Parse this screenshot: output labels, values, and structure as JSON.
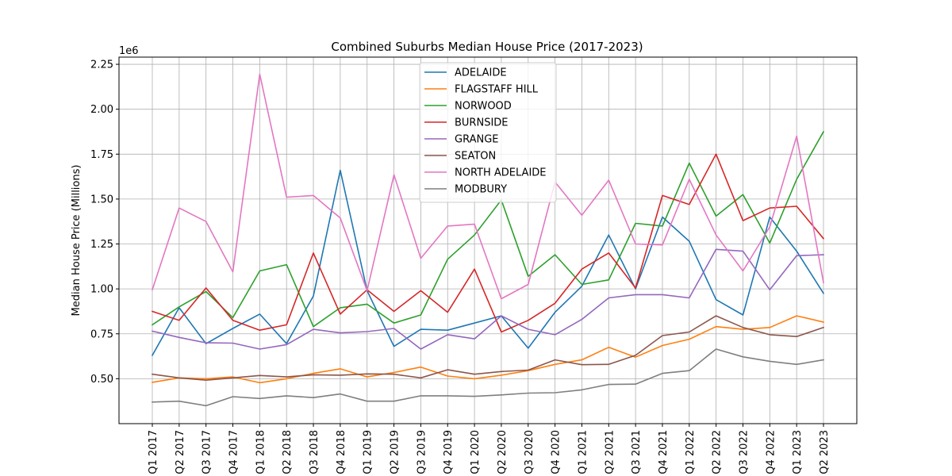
{
  "chart_data": {
    "type": "line",
    "title": "Combined Suburbs Median House Price (2017-2023)",
    "xlabel": "",
    "ylabel": "Median House Price (Millions)",
    "offset_label": "1e6",
    "ylim": [
      250000,
      2290000
    ],
    "yticks": [
      500000,
      750000,
      1000000,
      1250000,
      1500000,
      1750000,
      2000000,
      2250000
    ],
    "ytick_labels": [
      "0.50",
      "0.75",
      "1.00",
      "1.25",
      "1.50",
      "1.75",
      "2.00",
      "2.25"
    ],
    "grid": true,
    "legend_position": "upper-center",
    "categories": [
      "Q1 2017",
      "Q2 2017",
      "Q3 2017",
      "Q4 2017",
      "Q1 2018",
      "Q2 2018",
      "Q3 2018",
      "Q4 2018",
      "Q1 2019",
      "Q2 2019",
      "Q3 2019",
      "Q4 2019",
      "Q1 2020",
      "Q2 2020",
      "Q3 2020",
      "Q4 2020",
      "Q1 2021",
      "Q2 2021",
      "Q3 2021",
      "Q4 2021",
      "Q1 2022",
      "Q2 2022",
      "Q3 2022",
      "Q4 2022",
      "Q1 2023",
      "Q2 2023"
    ],
    "series": [
      {
        "name": "ADELAIDE",
        "color": "#1f77b4",
        "values": [
          630000,
          895000,
          695000,
          780000,
          860000,
          695000,
          960000,
          1660000,
          990000,
          680000,
          775000,
          770000,
          810000,
          850000,
          670000,
          870000,
          1015000,
          1300000,
          1000000,
          1400000,
          1265000,
          940000,
          855000,
          1400000,
          1210000,
          975000
        ]
      },
      {
        "name": "FLAGSTAFF HILL",
        "color": "#ff7f0e",
        "values": [
          480000,
          505000,
          500000,
          510000,
          478000,
          500000,
          530000,
          555000,
          510000,
          535000,
          565000,
          515000,
          500000,
          520000,
          545000,
          580000,
          605000,
          675000,
          620000,
          685000,
          720000,
          790000,
          775000,
          785000,
          850000,
          815000
        ]
      },
      {
        "name": "NORWOOD",
        "color": "#2ca02c",
        "values": [
          800000,
          900000,
          985000,
          840000,
          1100000,
          1135000,
          790000,
          895000,
          915000,
          810000,
          855000,
          1165000,
          1300000,
          1495000,
          1070000,
          1190000,
          1025000,
          1050000,
          1365000,
          1350000,
          1700000,
          1405000,
          1525000,
          1255000,
          1610000,
          1875000
        ]
      },
      {
        "name": "BURNSIDE",
        "color": "#d62728",
        "values": [
          875000,
          825000,
          1005000,
          825000,
          770000,
          800000,
          1200000,
          860000,
          995000,
          875000,
          990000,
          870000,
          1110000,
          760000,
          825000,
          920000,
          1110000,
          1200000,
          1005000,
          1520000,
          1470000,
          1750000,
          1380000,
          1450000,
          1460000,
          1280000
        ]
      },
      {
        "name": "GRANGE",
        "color": "#9467bd",
        "values": [
          765000,
          730000,
          700000,
          698000,
          665000,
          690000,
          775000,
          755000,
          762000,
          780000,
          665000,
          745000,
          722000,
          850000,
          775000,
          745000,
          830000,
          950000,
          968000,
          968000,
          950000,
          1220000,
          1210000,
          995000,
          1185000,
          1190000
        ]
      },
      {
        "name": "SEATON",
        "color": "#8c564b",
        "values": [
          525000,
          505000,
          492000,
          505000,
          518000,
          510000,
          522000,
          520000,
          527000,
          525000,
          505000,
          550000,
          525000,
          540000,
          548000,
          605000,
          578000,
          580000,
          630000,
          740000,
          760000,
          850000,
          785000,
          745000,
          735000,
          785000
        ]
      },
      {
        "name": "NORTH ADELAIDE",
        "color": "#e377c2",
        "values": [
          995000,
          1450000,
          1375000,
          1095000,
          2195000,
          1510000,
          1520000,
          1395000,
          990000,
          1635000,
          1170000,
          1350000,
          1360000,
          945000,
          1025000,
          1595000,
          1410000,
          1605000,
          1250000,
          1245000,
          1610000,
          1300000,
          1100000,
          1345000,
          1850000,
          1035000
        ]
      },
      {
        "name": "MODBURY",
        "color": "#7f7f7f",
        "values": [
          370000,
          375000,
          350000,
          400000,
          390000,
          405000,
          395000,
          415000,
          375000,
          375000,
          405000,
          405000,
          402000,
          410000,
          420000,
          422000,
          438000,
          468000,
          470000,
          530000,
          545000,
          665000,
          622000,
          597000,
          580000,
          605000
        ]
      }
    ]
  }
}
